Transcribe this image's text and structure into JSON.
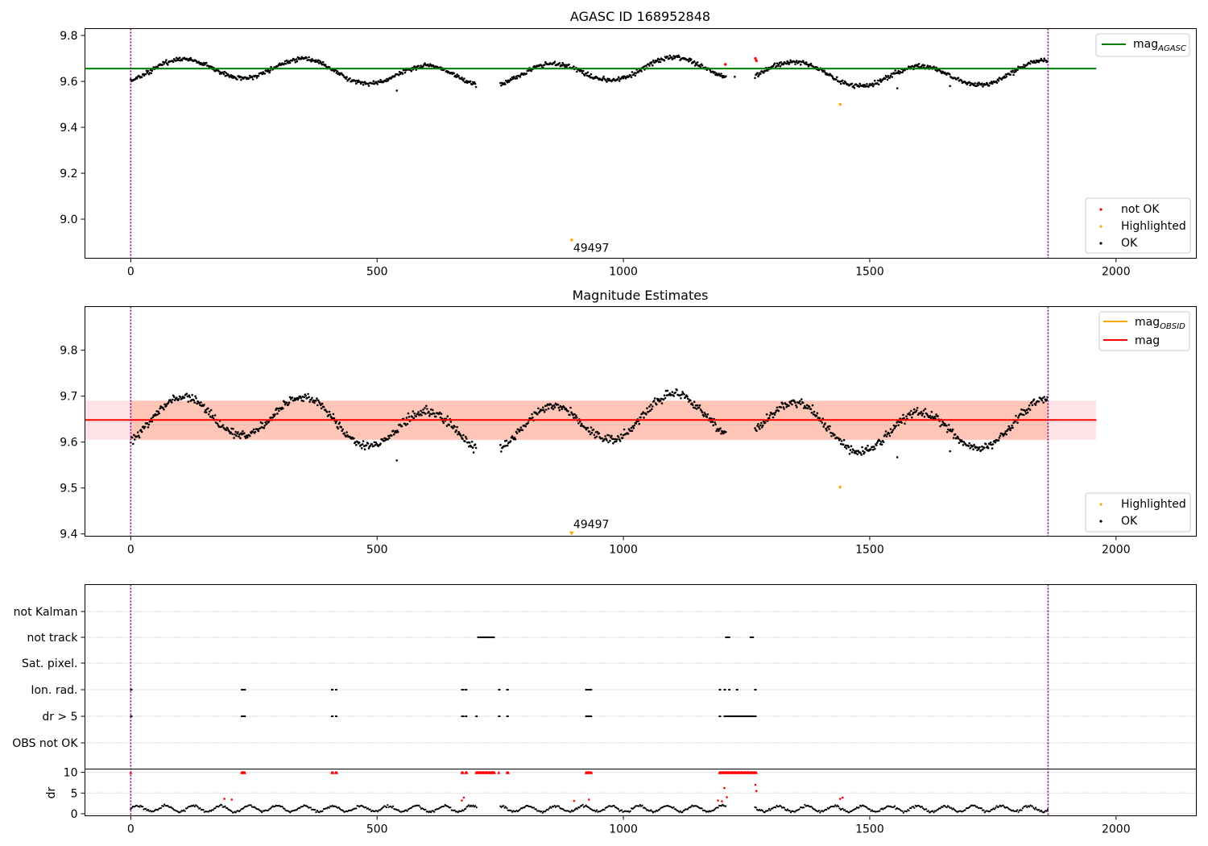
{
  "colors": {
    "ok": "#000000",
    "not_ok": "#ff0000",
    "highlighted": "#ffa500",
    "mag_agasc_line": "#008000",
    "mag_line": "#ff0000",
    "mag_obsid_line": "#ffa500",
    "band_outer": "#ffc0cb",
    "band_inner": "#ffa07a",
    "vline": "#800080",
    "grid": "#b0b0b0"
  },
  "chart_data": [
    {
      "type": "scatter",
      "title": "AGASC ID 168952848",
      "xlim": [
        -93,
        2163
      ],
      "ylim": [
        8.83,
        9.83
      ],
      "x_ticks": [
        0,
        500,
        1000,
        1500,
        2000
      ],
      "y_ticks": [
        9.0,
        9.2,
        9.4,
        9.6,
        9.8
      ],
      "y_tick_labels": [
        "9.0",
        "9.2",
        "9.4",
        "9.6",
        "9.8"
      ],
      "vlines": [
        0,
        1862
      ],
      "hline": {
        "value": 9.656,
        "x_range": [
          -93,
          1960
        ],
        "label": "mag",
        "label_sub": "AGASC"
      },
      "series": [
        {
          "name": "not OK",
          "points": [
            [
              1207,
              9.674
            ],
            [
              1268,
              9.7
            ],
            [
              1270,
              9.69
            ]
          ]
        },
        {
          "name": "Highlighted",
          "points": [
            [
              895,
              8.91
            ],
            [
              1440,
              9.5
            ]
          ]
        },
        {
          "name": "OK",
          "model": "light-curve",
          "x_range": [
            0,
            1862
          ],
          "mean": 9.64,
          "outliers": [
            [
              540,
              9.56
            ],
            [
              1226,
              9.62
            ],
            [
              1556,
              9.57
            ],
            [
              1663,
              9.58
            ]
          ]
        }
      ],
      "annotation": {
        "text": "49497",
        "x": 895,
        "y": 8.91
      },
      "legend_top": "top-right",
      "legend_bottom": "bottom-right"
    },
    {
      "type": "scatter",
      "title": "Magnitude Estimates",
      "xlim": [
        -93,
        2163
      ],
      "ylim": [
        9.395,
        9.895
      ],
      "x_ticks": [
        0,
        500,
        1000,
        1500,
        2000
      ],
      "y_ticks": [
        9.4,
        9.5,
        9.6,
        9.7,
        9.8
      ],
      "y_tick_labels": [
        "9.4",
        "9.5",
        "9.6",
        "9.7",
        "9.8"
      ],
      "vlines": [
        0,
        1862
      ],
      "hline": {
        "value": 9.648,
        "x_range": [
          -93,
          1960
        ],
        "label": "mag"
      },
      "obsid_line_label": "mag",
      "obsid_line_label_sub": "OBSID",
      "band": {
        "low": 9.605,
        "high": 9.69,
        "x_range": [
          -93,
          1960
        ]
      },
      "series": [
        {
          "name": "Highlighted",
          "points": [
            [
              1440,
              9.502
            ],
            [
              895,
              9.4
            ]
          ]
        },
        {
          "name": "OK",
          "model": "light-curve",
          "x_range": [
            0,
            1862
          ],
          "mean": 9.64,
          "outliers": [
            [
              540,
              9.56
            ],
            [
              1556,
              9.567
            ],
            [
              1663,
              9.58
            ]
          ]
        }
      ],
      "annotation": {
        "text": "49497",
        "x": 895,
        "y": 9.4
      },
      "legend_top": "top-right",
      "legend_bottom": "bottom-right"
    },
    {
      "type": "scatter",
      "title": "",
      "xlim": [
        -93,
        2163
      ],
      "x_ticks": [
        0,
        500,
        1000,
        1500,
        2000
      ],
      "vlines": [
        0,
        1862
      ],
      "flag_rows": [
        "not Kalman",
        "not track",
        "Sat. pixel.",
        "Ion. rad.",
        "dr > 5",
        "OBS not OK"
      ],
      "flags": {
        "not Kalman": [],
        "not track": [
          [
            705,
            738
          ],
          [
            1208,
            1216
          ],
          [
            1258,
            1264
          ]
        ],
        "Sat. pixel.": [],
        "Ion. rad.": [
          [
            0,
            2
          ],
          [
            225,
            233
          ],
          [
            408,
            411
          ],
          [
            416,
            419
          ],
          [
            672,
            676
          ],
          [
            680,
            683
          ],
          [
            747,
            749
          ],
          [
            764,
            767
          ],
          [
            924,
            932
          ],
          [
            933,
            936
          ],
          [
            1195,
            1198
          ],
          [
            1205,
            1207
          ],
          [
            1214,
            1217
          ],
          [
            1230,
            1233
          ],
          [
            1267,
            1270
          ]
        ],
        "dr > 5": [
          [
            0,
            2
          ],
          [
            225,
            233
          ],
          [
            408,
            411
          ],
          [
            416,
            419
          ],
          [
            672,
            676
          ],
          [
            680,
            683
          ],
          [
            701,
            703
          ],
          [
            747,
            749
          ],
          [
            764,
            767
          ],
          [
            924,
            936
          ],
          [
            1195,
            1198
          ],
          [
            1205,
            1265
          ],
          [
            1267,
            1270
          ]
        ],
        "OBS not OK": []
      },
      "dr": {
        "ylabel": "dr",
        "ylim": [
          -0.5,
          10.8
        ],
        "y_ticks": [
          0,
          5,
          10
        ],
        "y_tick_labels": [
          "0",
          "5",
          "10"
        ],
        "clip": 10,
        "clipped_ranges": [
          [
            0,
            2
          ],
          [
            225,
            233
          ],
          [
            408,
            411
          ],
          [
            416,
            419
          ],
          [
            672,
            676
          ],
          [
            680,
            683
          ],
          [
            701,
            740
          ],
          [
            747,
            749
          ],
          [
            764,
            767
          ],
          [
            924,
            936
          ],
          [
            1195,
            1270
          ]
        ],
        "red_points": [
          [
            190,
            3.6
          ],
          [
            205,
            3.4
          ],
          [
            672,
            3.2
          ],
          [
            676,
            3.9
          ],
          [
            900,
            3.1
          ],
          [
            930,
            3.4
          ],
          [
            1192,
            3.2
          ],
          [
            1200,
            3.0
          ],
          [
            1210,
            4.0
          ],
          [
            1205,
            6.2
          ],
          [
            1268,
            7.0
          ],
          [
            1270,
            5.5
          ],
          [
            1440,
            3.6
          ],
          [
            1445,
            3.9
          ]
        ],
        "baseline_mean": 1.2
      }
    }
  ]
}
